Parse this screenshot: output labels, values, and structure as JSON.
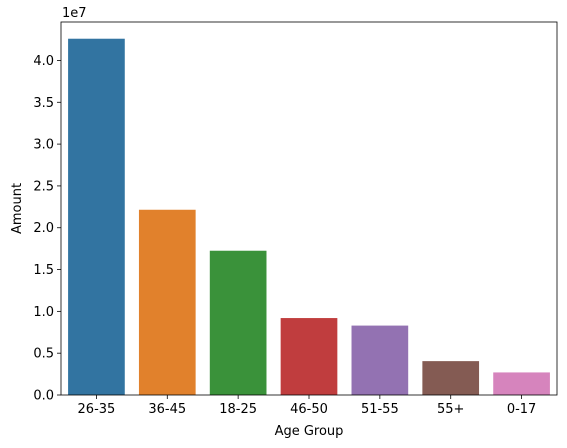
{
  "chart_data": {
    "type": "bar",
    "title": "",
    "xlabel": "Age Group",
    "ylabel": "Amount",
    "offset_label": "1e7",
    "scale_factor": 10000000,
    "categories": [
      "26-35",
      "36-45",
      "18-25",
      "46-50",
      "51-55",
      "55+",
      "0-17"
    ],
    "values": [
      42600000,
      22150000,
      17250000,
      9200000,
      8300000,
      4050000,
      2700000
    ],
    "colors": [
      "#3274a1",
      "#e1812c",
      "#3a923a",
      "#c03d3e",
      "#9372b2",
      "#845b53",
      "#d684bd"
    ],
    "ylim": [
      0,
      44600000
    ],
    "yticks": [
      0,
      5000000,
      10000000,
      15000000,
      20000000,
      25000000,
      30000000,
      35000000,
      40000000
    ],
    "ytick_labels": [
      "0.0",
      "0.5",
      "1.0",
      "1.5",
      "2.0",
      "2.5",
      "3.0",
      "3.5",
      "4.0"
    ],
    "grid": false,
    "legend": "none"
  }
}
